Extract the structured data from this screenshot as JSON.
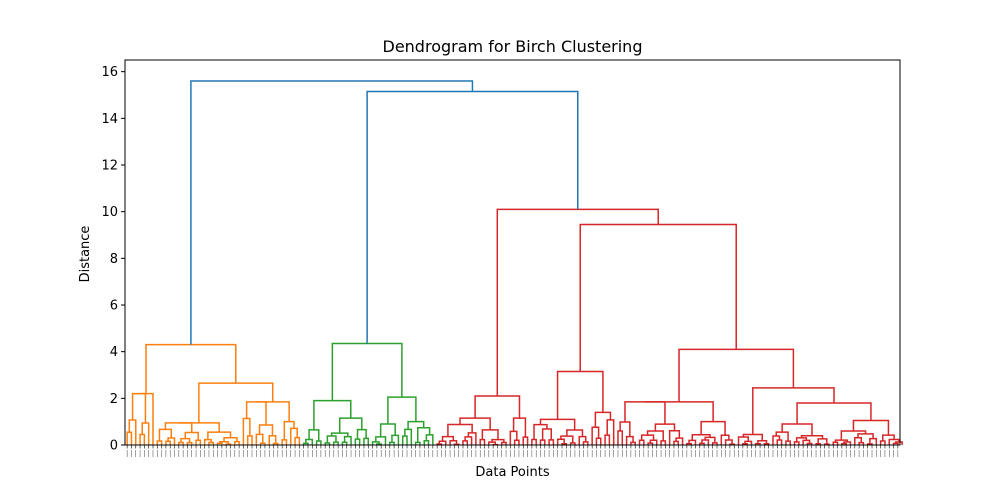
{
  "chart_data": {
    "type": "dendrogram",
    "title": "Dendrogram for Birch Clustering",
    "xlabel": "Data Points",
    "ylabel": "Distance",
    "ylim": [
      0,
      16.5
    ],
    "yticks": [
      0,
      2,
      4,
      6,
      8,
      10,
      12,
      14,
      16
    ],
    "leaf_count": 180,
    "colors": {
      "above_threshold": "#1f77b4",
      "cluster_1": "#ff7f0e",
      "cluster_2": "#2ca02c",
      "cluster_3": "#d62728"
    },
    "top_merges": [
      {
        "height": 15.6,
        "joins": [
          "cluster_1",
          "upper"
        ]
      },
      {
        "height": 15.15,
        "joins": [
          "cluster_2",
          "cluster_3"
        ]
      },
      {
        "height": 10.1,
        "joins": [
          "cluster_3_left",
          "cluster_3_right"
        ]
      },
      {
        "height": 9.45,
        "joins": [
          "cluster_3_mid",
          "cluster_3_far_right"
        ]
      }
    ],
    "clusters": [
      {
        "name": "cluster_1",
        "color": "#ff7f0e",
        "root_height": 4.3,
        "sub_heights": [
          2.2,
          2.65,
          1.85,
          0.95
        ],
        "leaves": 40
      },
      {
        "name": "cluster_2",
        "color": "#2ca02c",
        "root_height": 4.35,
        "sub_heights": [
          1.9,
          2.05,
          1.15
        ],
        "leaves": 31
      },
      {
        "name": "cluster_3",
        "color": "#d62728",
        "root_height": 10.1,
        "sub_heights": [
          2.1,
          3.15,
          4.1,
          2.45,
          1.85,
          1.8,
          1.05
        ],
        "leaves": 109
      }
    ]
  }
}
